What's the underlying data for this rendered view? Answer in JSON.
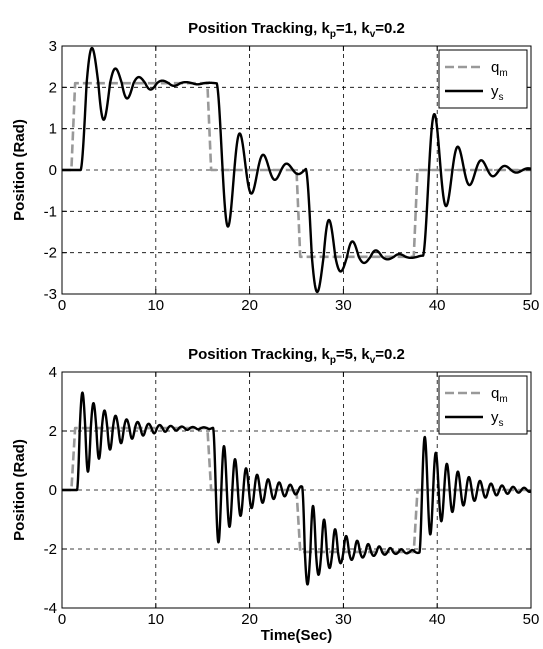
{
  "chart_data": [
    {
      "type": "line",
      "title": {
        "main": "Position Tracking, k",
        "sub1": "p",
        "mid": "=1, k",
        "sub2": "v",
        "end": "=0.2"
      },
      "ylabel": "Position (Rad)",
      "xlabel": "",
      "xlim": [
        0,
        50
      ],
      "ylim": [
        -3,
        3
      ],
      "xticks": [
        0,
        10,
        20,
        30,
        40,
        50
      ],
      "yticks": [
        -3,
        -2,
        -1,
        0,
        1,
        2,
        3
      ],
      "grid": true,
      "legend_position": "top-right",
      "series": [
        {
          "key": "qm",
          "legend_main": "q",
          "legend_sub": "m",
          "color": "#999999",
          "dash": true,
          "levels": [
            [
              0,
              0
            ],
            [
              1,
              2.1
            ],
            [
              15.5,
              0
            ],
            [
              25,
              -2.1
            ],
            [
              37.5,
              0
            ]
          ]
        },
        {
          "key": "ys",
          "legend_main": "y",
          "legend_sub": "s",
          "color": "#000000",
          "dash": false,
          "peak": 2.95,
          "trough": -2.95,
          "delay": 1.0,
          "ring_freq": 0.4,
          "ring_decay": 0.35
        }
      ]
    },
    {
      "type": "line",
      "title": {
        "main": "Position Tracking, k",
        "sub1": "p",
        "mid": "=5, k",
        "sub2": "v",
        "end": "=0.2"
      },
      "ylabel": "Position (Rad)",
      "xlabel": "Time(Sec)",
      "xlim": [
        0,
        50
      ],
      "ylim": [
        -4,
        4
      ],
      "xticks": [
        0,
        10,
        20,
        30,
        40,
        50
      ],
      "yticks": [
        -4,
        -2,
        0,
        2,
        4
      ],
      "grid": true,
      "legend_position": "top-right",
      "series": [
        {
          "key": "qm",
          "legend_main": "q",
          "legend_sub": "m",
          "color": "#999999",
          "dash": true,
          "levels": [
            [
              0,
              0
            ],
            [
              1,
              2.1
            ],
            [
              15.5,
              0
            ],
            [
              25,
              -2.1
            ],
            [
              37.5,
              0
            ]
          ]
        },
        {
          "key": "ys",
          "legend_main": "y",
          "legend_sub": "s",
          "color": "#000000",
          "dash": false,
          "peak": 3.3,
          "trough": -3.2,
          "delay": 0.6,
          "ring_freq": 0.85,
          "ring_decay": 0.3
        }
      ]
    }
  ]
}
